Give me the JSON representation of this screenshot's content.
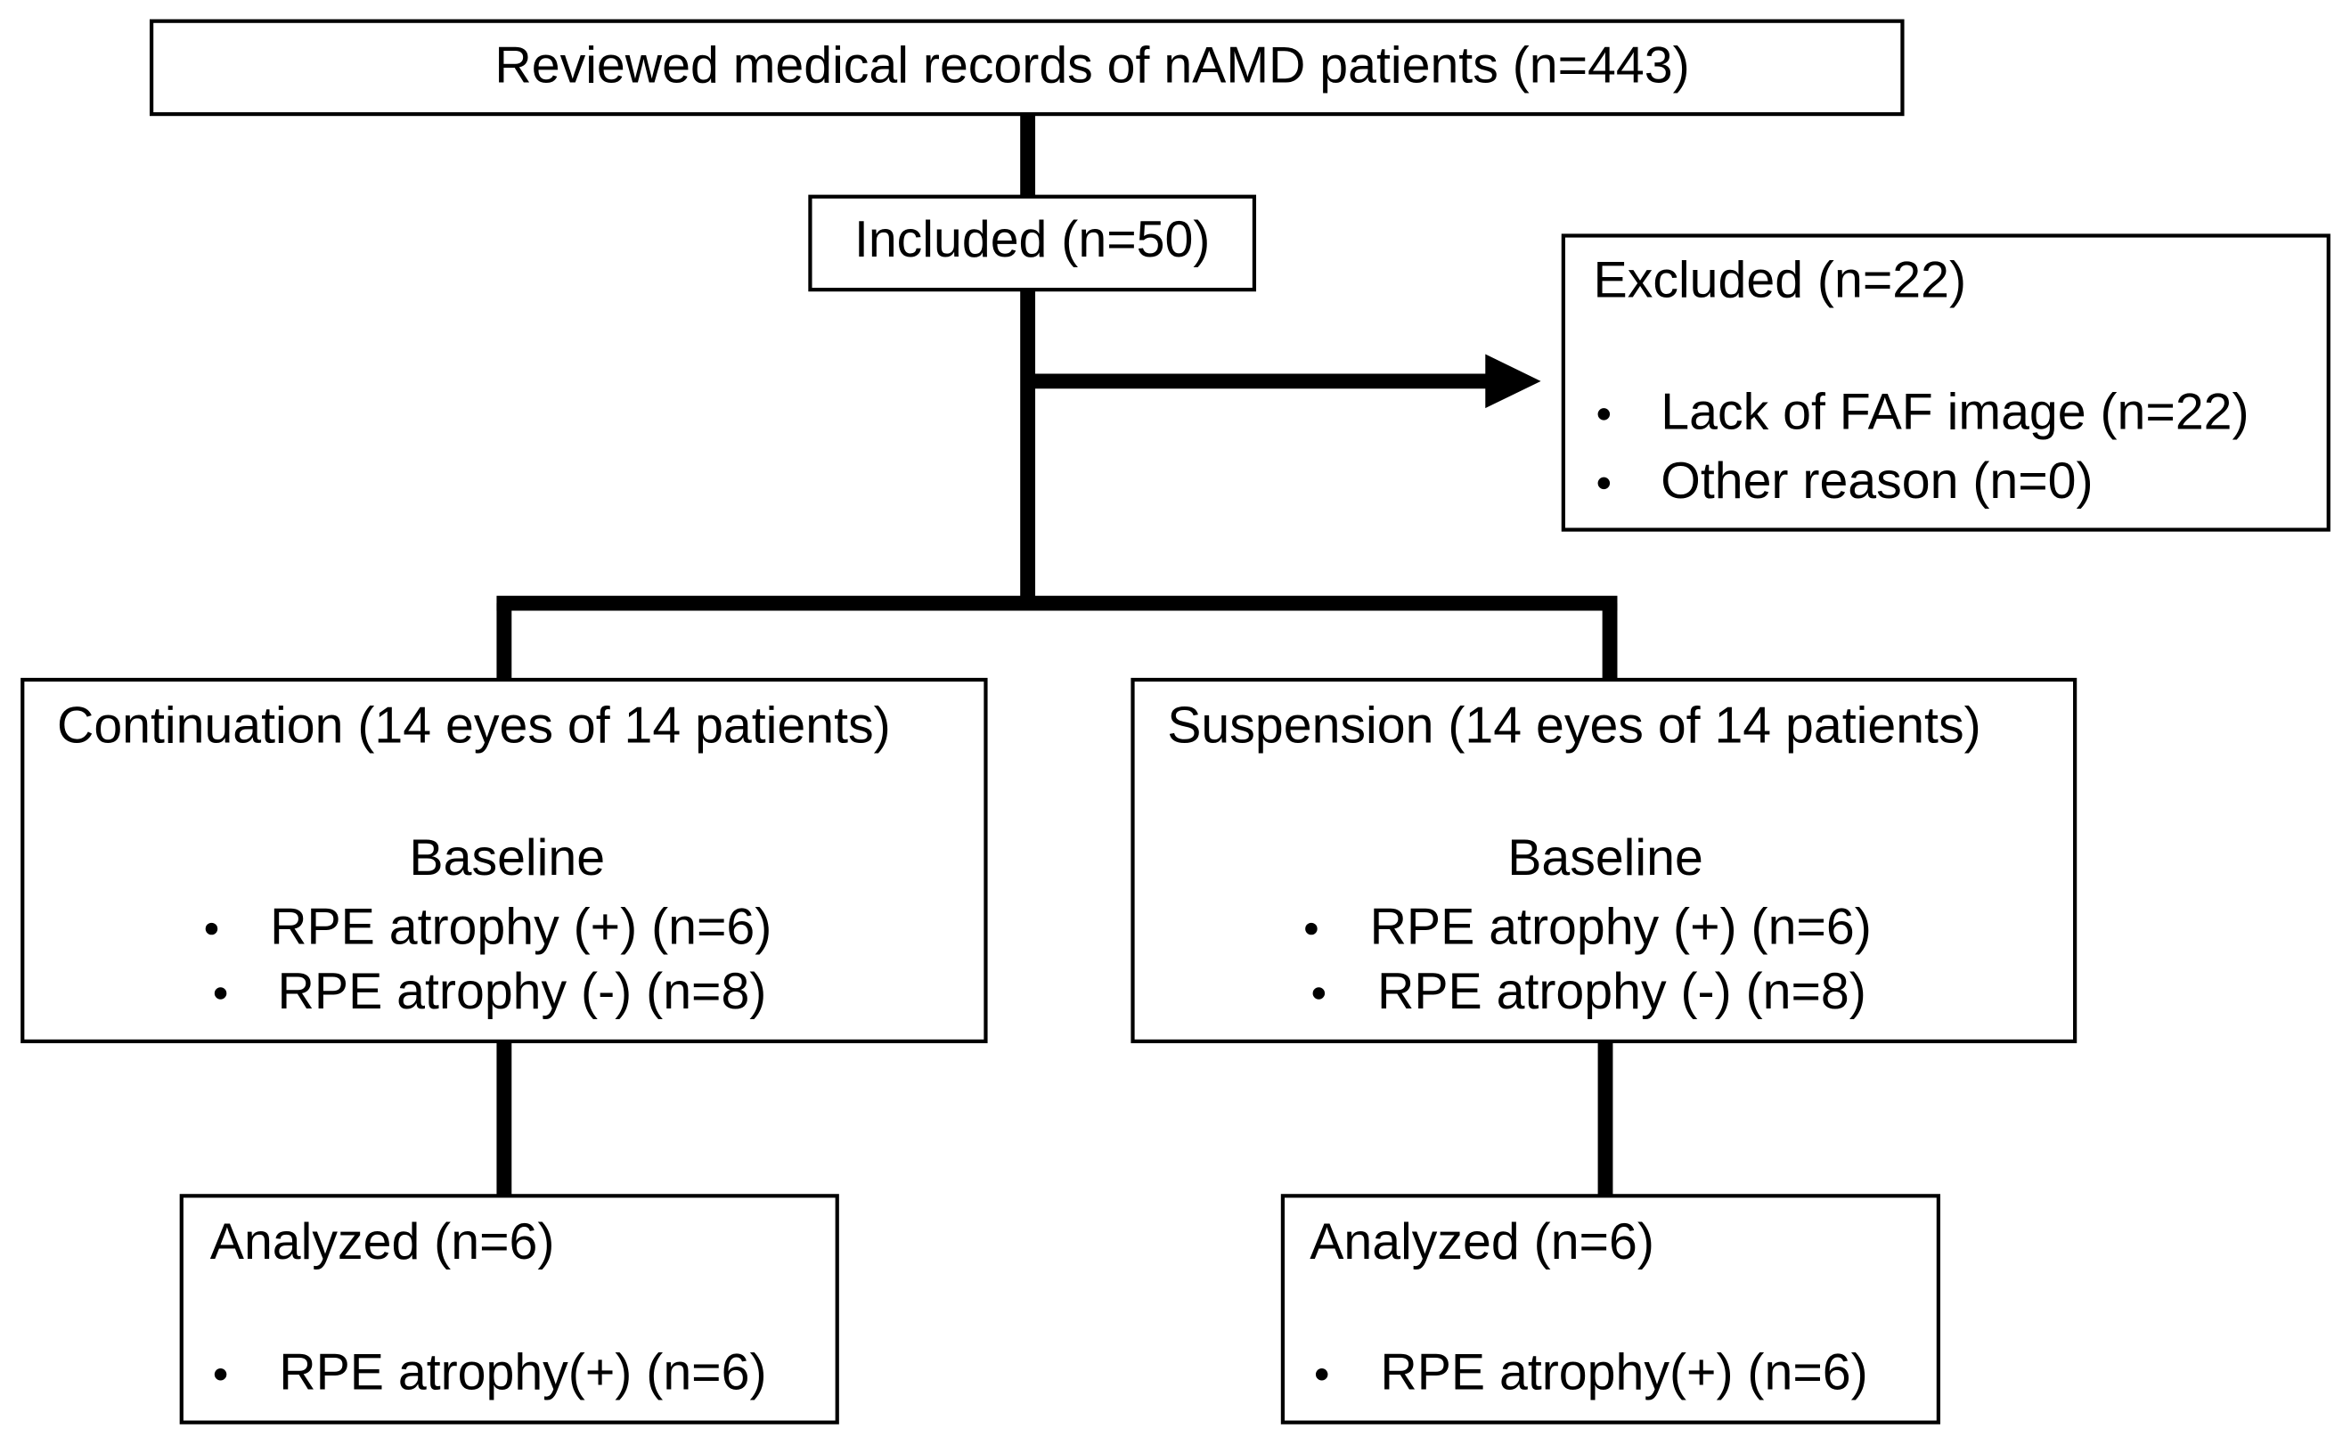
{
  "nodes": [
    {
      "title": "Reviewed medical records of nAMD patients (n=443)"
    },
    {
      "title": "Included (n=50)"
    },
    {
      "title": "Excluded (n=22)",
      "items": [
        "Lack of FAF image (n=22)",
        "Other reason (n=0)"
      ]
    },
    {
      "title": "Continuation (14 eyes of 14 patients)",
      "subtitle": "Baseline",
      "items": [
        "RPE atrophy (+) (n=6)",
        "RPE atrophy (-) (n=8)"
      ]
    },
    {
      "title": "Suspension (14 eyes of 14 patients)",
      "subtitle": "Baseline",
      "items": [
        "RPE atrophy (+) (n=6)",
        "RPE atrophy (-) (n=8)"
      ]
    },
    {
      "title": "Analyzed (n=6)",
      "items": [
        "RPE atrophy(+) (n=6)"
      ]
    },
    {
      "title": "Analyzed (n=6)",
      "items": [
        "RPE atrophy(+) (n=6)"
      ]
    }
  ]
}
